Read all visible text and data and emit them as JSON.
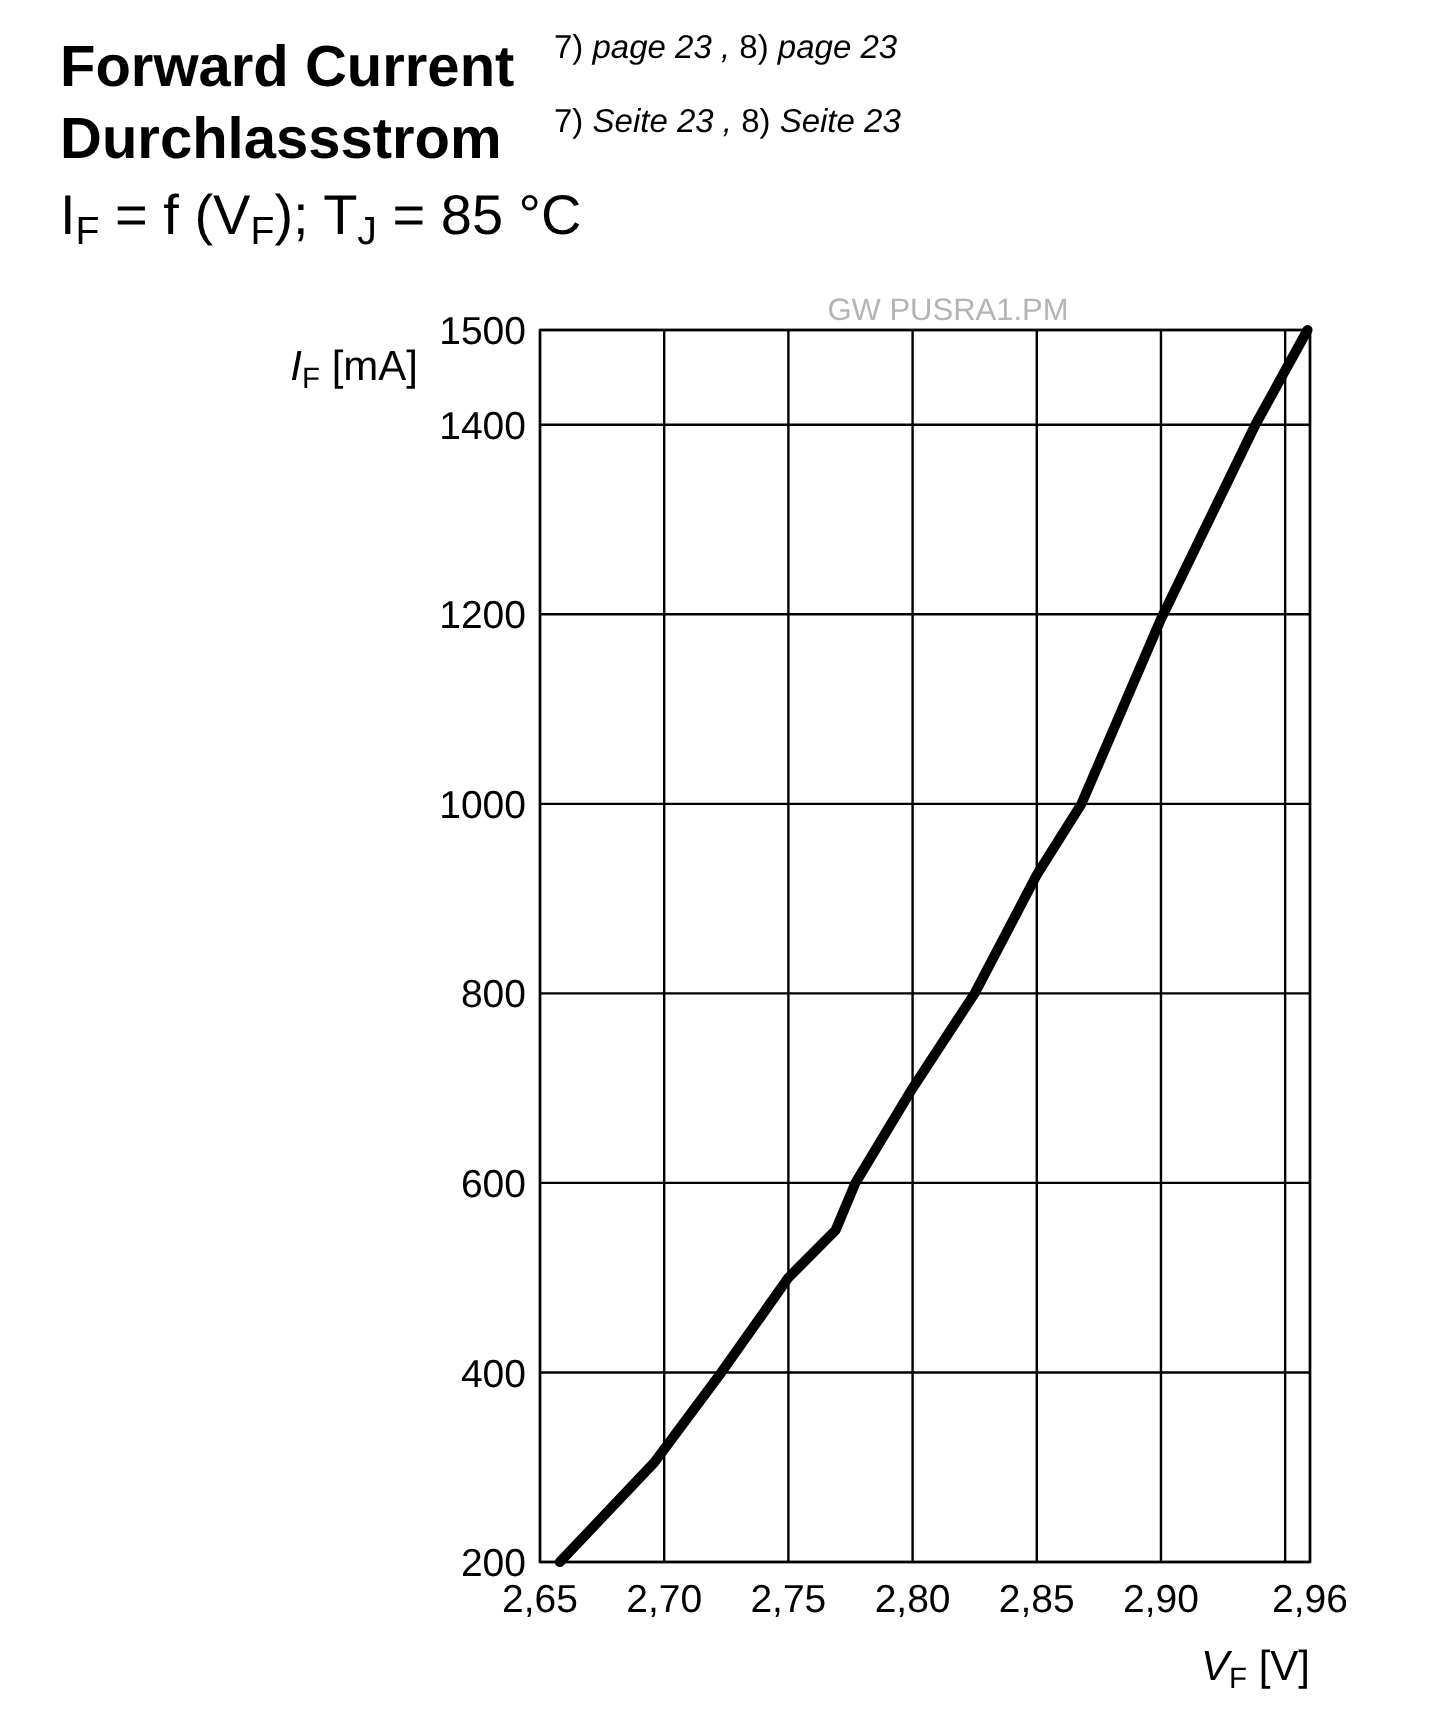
{
  "chart_data": {
    "type": "line",
    "title": "Forward Current\nDurchlassstrom",
    "subtitle": "I$_{F}$ = f (V$_{F}$); T$_{J}$ = 85 °C",
    "annotations": [
      "7) page 23 , 8) page 23",
      "7) Seite 23 , 8) Seite 23",
      "GW PUSRA1.PM"
    ],
    "xlabel": "V$_{F}$ [V]",
    "ylabel": "I$_{F}$ [mA]",
    "x": [
      2.658,
      2.696,
      2.723,
      2.75,
      2.769,
      2.777,
      2.8,
      2.825,
      2.85,
      2.868,
      2.9,
      2.938,
      2.959
    ],
    "series": [
      {
        "color": "#000000",
        "values": [
          200,
          305,
          400,
          500,
          550,
          600,
          700,
          800,
          925,
          1000,
          1195,
          1400,
          1500
        ]
      }
    ],
    "xlim": [
      2.65,
      2.96
    ],
    "xticks": [
      {
        "value": 2.65,
        "label": "2,65"
      },
      {
        "value": 2.7,
        "label": "2,70"
      },
      {
        "value": 2.75,
        "label": "2,75"
      },
      {
        "value": 2.8,
        "label": "2,80"
      },
      {
        "value": 2.85,
        "label": "2,85"
      },
      {
        "value": 2.9,
        "label": "2,90"
      },
      {
        "value": 2.95,
        "label": null
      },
      {
        "value": 2.96,
        "label": "2,96"
      }
    ],
    "ylim": [
      200,
      1500
    ],
    "yticks": [
      200,
      400,
      600,
      800,
      1000,
      1200,
      1400,
      1500
    ],
    "grid": true,
    "line_style": "solid"
  }
}
